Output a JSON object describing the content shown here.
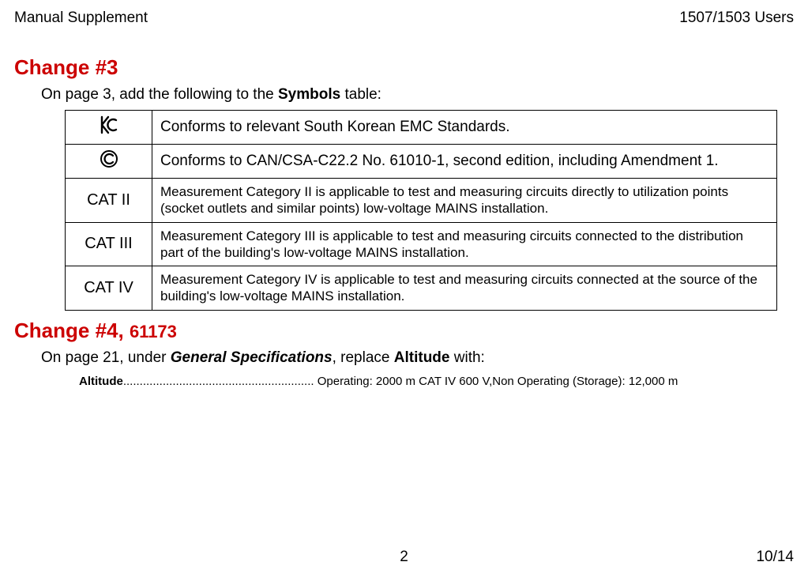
{
  "header": {
    "left": "Manual Supplement",
    "right": "1507/1503 Users"
  },
  "change3": {
    "title_prefix": "Change #3",
    "intro_before": "On page 3, add the following to the ",
    "intro_bold": "Symbols",
    "intro_after": " table:",
    "rows": [
      {
        "symbol_type": "kc",
        "desc": "Conforms to relevant South Korean EMC Standards.",
        "desc_large": true
      },
      {
        "symbol_type": "csa",
        "desc": "Conforms to CAN/CSA-C22.2 No. 61010-1, second edition, including Amendment 1.",
        "desc_large": true
      },
      {
        "symbol_type": "text",
        "symbol_text": "CAT II",
        "desc": "Measurement Category II is applicable to test and measuring circuits directly to utilization points (socket outlets and similar points) low-voltage MAINS installation.",
        "desc_large": false
      },
      {
        "symbol_type": "text",
        "symbol_text": "CAT III",
        "desc": "Measurement Category III is applicable to test and measuring circuits connected to the distribution part of the building's low-voltage MAINS installation.",
        "desc_large": false
      },
      {
        "symbol_type": "text",
        "symbol_text": "CAT IV",
        "desc": "Measurement Category IV is applicable to test and measuring circuits connected at the source of the building's low-voltage MAINS installation.",
        "desc_large": false
      }
    ]
  },
  "change4": {
    "title_main": "Change #4, ",
    "title_num": "61173",
    "intro_p1": "On page 21, under ",
    "intro_bi": "General Specifications",
    "intro_p2": ", replace ",
    "intro_b2": "Altitude",
    "intro_p3": " with:",
    "spec_label": "Altitude",
    "spec_dots": "..........................................................",
    "spec_value": " Operating: 2000 m CAT IV 600 V,Non Operating (Storage): 12,000 m"
  },
  "footer": {
    "page": "2",
    "date": "10/14"
  },
  "colors": {
    "red": "#cc0000",
    "black": "#000000",
    "bg": "#ffffff"
  }
}
